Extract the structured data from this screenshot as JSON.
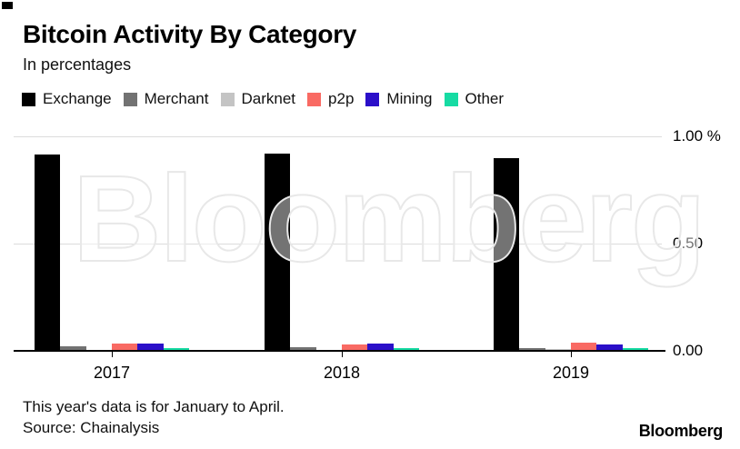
{
  "watermark": {
    "text": "Bloomberg"
  },
  "footer": {
    "note": "This year's data is for January to April.",
    "source": "Source: Chainalysis",
    "logo": "Bloomberg"
  },
  "chart_data": {
    "type": "bar",
    "title": "Bitcoin Activity By Category",
    "subtitle": "In percentages",
    "unit": "%",
    "categories": [
      "2017",
      "2018",
      "2019"
    ],
    "series": [
      {
        "name": "Exchange",
        "color": "#000000",
        "values": [
          0.915,
          0.92,
          0.9
        ]
      },
      {
        "name": "Merchant",
        "color": "#727272",
        "values": [
          0.021,
          0.017,
          0.014
        ]
      },
      {
        "name": "Darknet",
        "color": "#C4C4C4",
        "values": [
          0.006,
          0.006,
          0.008
        ]
      },
      {
        "name": "p2p",
        "color": "#F96A63",
        "values": [
          0.033,
          0.028,
          0.038
        ]
      },
      {
        "name": "Mining",
        "color": "#2B0FC9",
        "values": [
          0.036,
          0.036,
          0.028
        ]
      },
      {
        "name": "Other",
        "color": "#16DBA3",
        "values": [
          0.014,
          0.014,
          0.014
        ]
      }
    ],
    "ylim": [
      0,
      1.0
    ],
    "yticks": [
      {
        "value": 1.0,
        "label": "1.00 %"
      },
      {
        "value": 0.5,
        "label": "0.50"
      },
      {
        "value": 0.0,
        "label": "0.00"
      }
    ],
    "grid": "horizontal",
    "legend_position": "top",
    "xlabel": "",
    "ylabel": ""
  }
}
